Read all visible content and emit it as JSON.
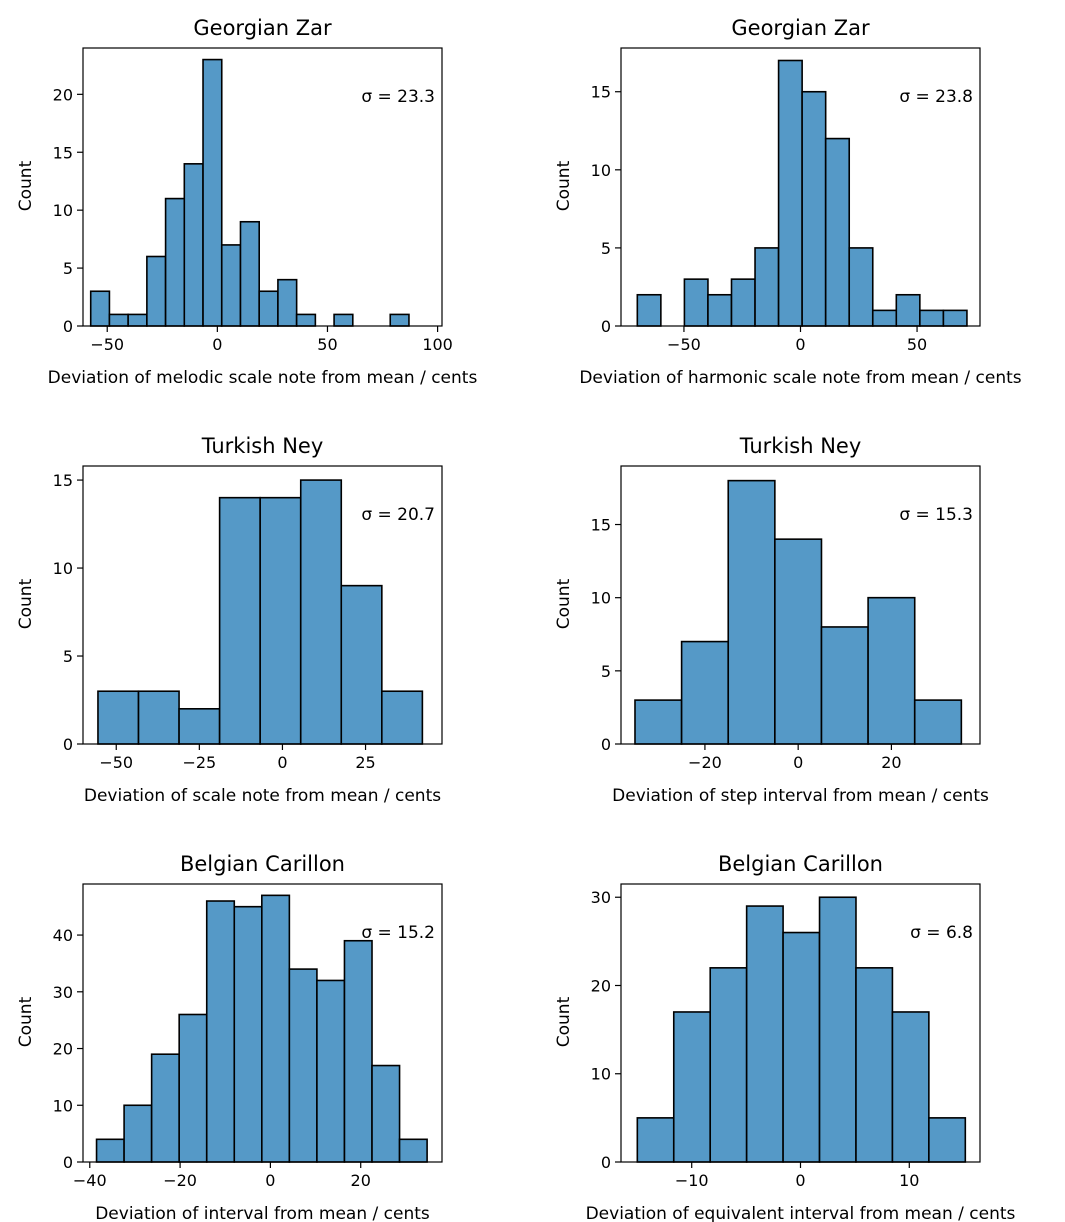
{
  "chart_data": [
    {
      "type": "bar",
      "title": "Georgian Zar",
      "xlabel": "Deviation of melodic scale note from mean / cents",
      "ylabel": "Count",
      "annotation": "σ = 23.3",
      "xlim": [
        -61,
        102
      ],
      "ylim": [
        0,
        24
      ],
      "xticks": [
        {
          "value": -50,
          "label": "−50"
        },
        {
          "value": 0,
          "label": "0"
        },
        {
          "value": 50,
          "label": "50"
        },
        {
          "value": 100,
          "label": "100"
        }
      ],
      "yticks": [
        {
          "value": 0,
          "label": "0"
        },
        {
          "value": 5,
          "label": "5"
        },
        {
          "value": 10,
          "label": "10"
        },
        {
          "value": 15,
          "label": "15"
        },
        {
          "value": 20,
          "label": "20"
        }
      ],
      "bin_start": -57.5,
      "bin_width": 8.5,
      "values": [
        3,
        1,
        1,
        6,
        11,
        14,
        23,
        7,
        9,
        3,
        4,
        1,
        0,
        1,
        0,
        0,
        1
      ]
    },
    {
      "type": "bar",
      "title": "Georgian Zar",
      "xlabel": "Deviation of harmonic scale note from mean / cents",
      "ylabel": "Count",
      "annotation": "σ = 23.8",
      "xlim": [
        -77,
        77
      ],
      "ylim": [
        0,
        17.8
      ],
      "xticks": [
        {
          "value": -50,
          "label": "−50"
        },
        {
          "value": 0,
          "label": "0"
        },
        {
          "value": 50,
          "label": "50"
        }
      ],
      "yticks": [
        {
          "value": 0,
          "label": "0"
        },
        {
          "value": 5,
          "label": "5"
        },
        {
          "value": 10,
          "label": "10"
        },
        {
          "value": 15,
          "label": "15"
        }
      ],
      "bin_start": -70,
      "bin_width": 10.1,
      "values": [
        2,
        0,
        3,
        2,
        3,
        5,
        17,
        15,
        12,
        5,
        1,
        2,
        1,
        1
      ]
    },
    {
      "type": "bar",
      "title": "Turkish Ney",
      "xlabel": "Deviation of scale note from mean / cents",
      "ylabel": "Count",
      "annotation": "σ = 20.7",
      "xlim": [
        -60,
        48
      ],
      "ylim": [
        0,
        15.8
      ],
      "xticks": [
        {
          "value": -50,
          "label": "−50"
        },
        {
          "value": -25,
          "label": "−25"
        },
        {
          "value": 0,
          "label": "0"
        },
        {
          "value": 25,
          "label": "25"
        }
      ],
      "yticks": [
        {
          "value": 0,
          "label": "0"
        },
        {
          "value": 5,
          "label": "5"
        },
        {
          "value": 10,
          "label": "10"
        },
        {
          "value": 15,
          "label": "15"
        }
      ],
      "bin_start": -55.5,
      "bin_width": 12.2,
      "values": [
        3,
        3,
        2,
        14,
        14,
        15,
        9,
        3
      ]
    },
    {
      "type": "bar",
      "title": "Turkish Ney",
      "xlabel": "Deviation of step interval from mean / cents",
      "ylabel": "Count",
      "annotation": "σ = 15.3",
      "xlim": [
        -38,
        39
      ],
      "ylim": [
        0,
        19
      ],
      "xticks": [
        {
          "value": -20,
          "label": "−20"
        },
        {
          "value": 0,
          "label": "0"
        },
        {
          "value": 20,
          "label": "20"
        }
      ],
      "yticks": [
        {
          "value": 0,
          "label": "0"
        },
        {
          "value": 5,
          "label": "5"
        },
        {
          "value": 10,
          "label": "10"
        },
        {
          "value": 15,
          "label": "15"
        }
      ],
      "bin_start": -35,
      "bin_width": 10,
      "values": [
        3,
        7,
        18,
        14,
        8,
        10,
        3
      ]
    },
    {
      "type": "bar",
      "title": "Belgian Carillon",
      "xlabel": "Deviation of interval from mean / cents",
      "ylabel": "Count",
      "annotation": "σ = 15.2",
      "xlim": [
        -41.5,
        38
      ],
      "ylim": [
        0,
        49
      ],
      "xticks": [
        {
          "value": -40,
          "label": "−40"
        },
        {
          "value": -20,
          "label": "−20"
        },
        {
          "value": 0,
          "label": "0"
        },
        {
          "value": 20,
          "label": "20"
        }
      ],
      "yticks": [
        {
          "value": 0,
          "label": "0"
        },
        {
          "value": 10,
          "label": "10"
        },
        {
          "value": 20,
          "label": "20"
        },
        {
          "value": 30,
          "label": "30"
        },
        {
          "value": 40,
          "label": "40"
        }
      ],
      "bin_start": -38.5,
      "bin_width": 6.1,
      "values": [
        4,
        10,
        19,
        26,
        46,
        45,
        47,
        34,
        32,
        39,
        17,
        4
      ]
    },
    {
      "type": "bar",
      "title": "Belgian Carillon",
      "xlabel": "Deviation of equivalent interval from mean / cents",
      "ylabel": "Count",
      "annotation": "σ =  6.8",
      "xlim": [
        -16.5,
        16.5
      ],
      "ylim": [
        0,
        31.5
      ],
      "xticks": [
        {
          "value": -10,
          "label": "−10"
        },
        {
          "value": 0,
          "label": "0"
        },
        {
          "value": 10,
          "label": "10"
        }
      ],
      "yticks": [
        {
          "value": 0,
          "label": "0"
        },
        {
          "value": 10,
          "label": "10"
        },
        {
          "value": 20,
          "label": "20"
        },
        {
          "value": 30,
          "label": "30"
        }
      ],
      "bin_start": -15,
      "bin_width": 3.35,
      "values": [
        5,
        17,
        22,
        29,
        26,
        30,
        22,
        17,
        5
      ]
    }
  ]
}
